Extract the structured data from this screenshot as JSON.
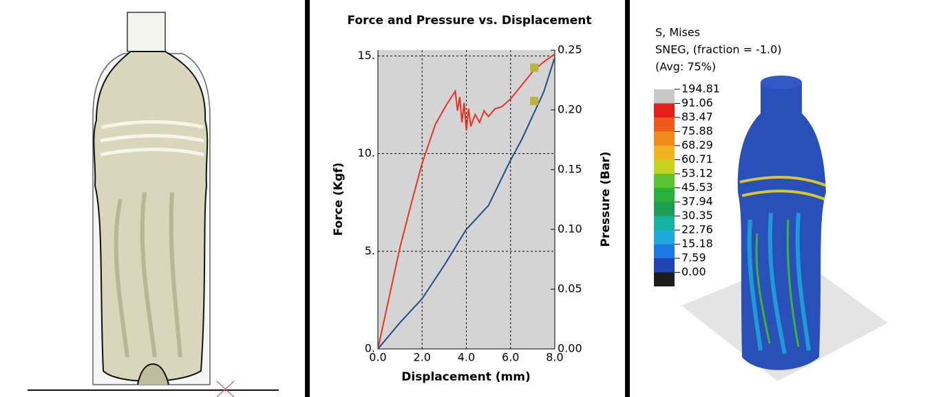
{
  "chart_data": {
    "type": "line",
    "title": "Force and Pressure vs. Displacement",
    "xlabel": "Displacement (mm)",
    "ylabel": "Force (Kgf)",
    "y2label": "Pressure (Bar)",
    "xlim": [
      0,
      8
    ],
    "ylim": [
      0,
      15.3
    ],
    "y2lim": [
      0,
      0.25
    ],
    "grid": true,
    "xticks": [
      {
        "value": 0,
        "label": "0.0"
      },
      {
        "value": 2,
        "label": "2.0"
      },
      {
        "value": 4,
        "label": "4.0"
      },
      {
        "value": 6,
        "label": "6.0"
      },
      {
        "value": 8,
        "label": "8.0"
      }
    ],
    "yticks": [
      {
        "value": 0,
        "label": "0."
      },
      {
        "value": 5,
        "label": "5."
      },
      {
        "value": 10,
        "label": "10."
      },
      {
        "value": 15,
        "label": "15."
      }
    ],
    "y2ticks": [
      {
        "value": 0,
        "label": "0.00"
      },
      {
        "value": 0.05,
        "label": "0.05"
      },
      {
        "value": 0.1,
        "label": "0.10"
      },
      {
        "value": 0.15,
        "label": "0.15"
      },
      {
        "value": 0.2,
        "label": "0.20"
      },
      {
        "value": 0.25,
        "label": "0.25"
      }
    ],
    "series": [
      {
        "color": "#e8321e",
        "x": [
          0,
          0.5,
          1,
          1.5,
          2,
          2.6,
          3.1,
          3.5,
          3.6,
          3.7,
          3.8,
          3.9,
          4.0,
          4.1,
          4.2,
          4.4,
          4.6,
          4.8,
          5.0,
          5.3,
          5.6,
          6.0,
          6.5,
          7.0,
          7.5,
          8.0
        ],
        "values": [
          0,
          2.6,
          5.2,
          7.4,
          9.5,
          11.5,
          12.5,
          13.2,
          12.2,
          12.9,
          11.6,
          12.6,
          11.2,
          12.3,
          11.4,
          12.0,
          11.6,
          12.2,
          11.9,
          12.3,
          12.4,
          12.8,
          13.5,
          14.2,
          14.7,
          15.1
        ]
      },
      {
        "color": "#1e4c8c",
        "axis": "y2",
        "x": [
          0,
          1,
          2,
          3,
          4,
          4.5,
          5,
          6,
          6.5,
          7,
          7.5,
          8
        ],
        "values": [
          0,
          0.022,
          0.042,
          0.07,
          0.1,
          0.11,
          0.12,
          0.158,
          0.175,
          0.195,
          0.215,
          0.244
        ]
      }
    ],
    "points": {
      "color": "#b8b43c",
      "x": [
        7.07,
        7.07
      ],
      "values": [
        14.4,
        12.7
      ]
    }
  },
  "contour": {
    "title": [
      "S, Mises",
      "SNEG, (fraction = -1.0)",
      "(Avg: 75%)"
    ],
    "levels": [
      {
        "value": 194.81,
        "color": "#c8c8c8"
      },
      {
        "value": 91.06,
        "color": "#e41e1a"
      },
      {
        "value": 83.47,
        "color": "#ee5a1c"
      },
      {
        "value": 75.88,
        "color": "#f08a1c"
      },
      {
        "value": 68.29,
        "color": "#f2b41e"
      },
      {
        "value": 60.71,
        "color": "#c4d222"
      },
      {
        "value": 53.12,
        "color": "#5cc432"
      },
      {
        "value": 45.53,
        "color": "#28b03c"
      },
      {
        "value": 37.94,
        "color": "#1c9e52"
      },
      {
        "value": 30.35,
        "color": "#16b2a2"
      },
      {
        "value": 22.76,
        "color": "#1ea8dc"
      },
      {
        "value": 15.18,
        "color": "#1e78e4"
      },
      {
        "value": 7.59,
        "color": "#2046b2"
      },
      {
        "value": {
          "value": 0,
          "label": "0.00"
        },
        "color": "#1c1c1c"
      }
    ]
  }
}
